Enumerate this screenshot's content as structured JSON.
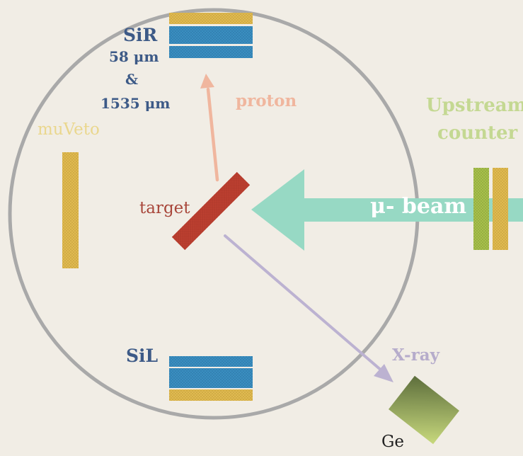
{
  "labels": {
    "sir": "SiR",
    "sir_thickness_1": "58 μm",
    "sir_and": "&",
    "sir_thickness_2": "1535 μm",
    "proton": "proton",
    "muveto": "muVeto",
    "upstream_line1": "Upstream",
    "upstream_line2": "counter",
    "target": "target",
    "beam": "μ- beam",
    "sil": "SiL",
    "xray": "X-ray",
    "ge": "Ge"
  },
  "colors": {
    "background": "#f1ede5",
    "chamber_outline": "#a9a9a9",
    "silicon_blue": "#3b8fc2",
    "detector_yellow": "#e2bc52",
    "target_red": "#c24232",
    "proton_arrow": "#f0b69e",
    "beam_arrow": "#97d9c4",
    "xray_arrow": "#bcb2d1",
    "upstream_green": "#a9c24e",
    "label_blue": "#3d5a87",
    "label_yellow": "#ead78e",
    "label_green": "#c4d892",
    "label_red": "#a8463a",
    "label_lilac": "#b6accb",
    "ge_dark": "#5d6e3c",
    "ge_light": "#c8d97d",
    "ge_label": "#222222"
  }
}
